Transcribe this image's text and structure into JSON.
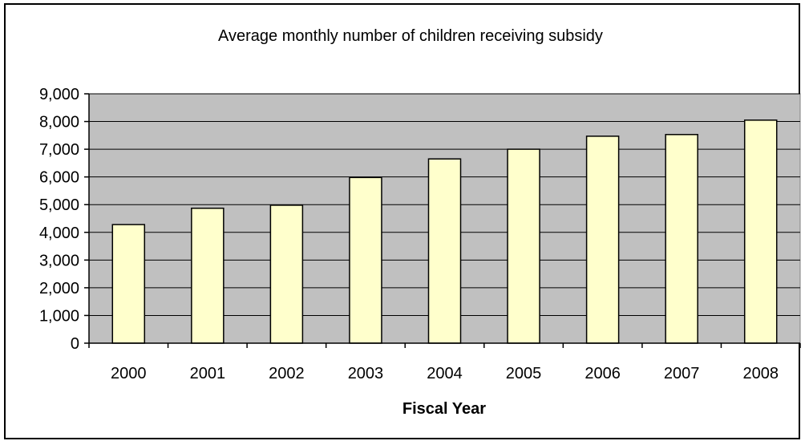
{
  "chart_data": {
    "type": "bar",
    "title": "Average monthly number of children receiving subsidy",
    "xlabel": "Fiscal Year",
    "ylabel": "",
    "categories": [
      "2000",
      "2001",
      "2002",
      "2003",
      "2004",
      "2005",
      "2006",
      "2007",
      "2008"
    ],
    "values": [
      4280,
      4870,
      4980,
      5980,
      6650,
      7000,
      7470,
      7530,
      8050
    ],
    "ylim": [
      0,
      9000
    ],
    "yticks": [
      0,
      1000,
      2000,
      3000,
      4000,
      5000,
      6000,
      7000,
      8000,
      9000
    ],
    "ytick_labels": [
      "0",
      "1,000",
      "2,000",
      "3,000",
      "4,000",
      "5,000",
      "6,000",
      "7,000",
      "8,000",
      "9,000"
    ],
    "grid": true,
    "legend": "none",
    "colors": {
      "bar_fill": "#ffffcc",
      "bar_stroke": "#000000",
      "plot_background": "#c0c0c0",
      "gridline": "#000000"
    }
  }
}
